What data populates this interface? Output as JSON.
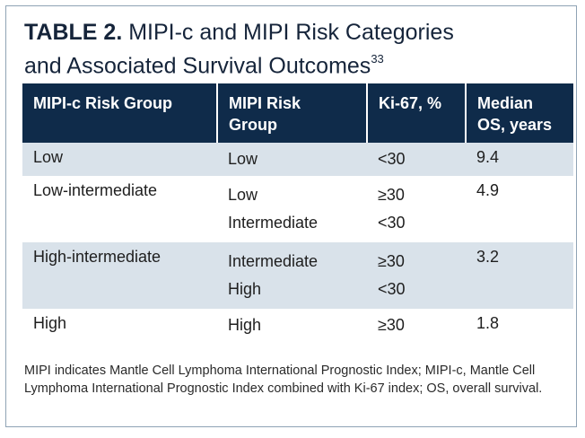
{
  "title": {
    "label": "TABLE 2.",
    "line1": "MIPI-c and MIPI Risk Categories",
    "line2": "and Associated Survival Outcomes",
    "ref": "33"
  },
  "headers": {
    "col1": "MIPI-c Risk Group",
    "col2_line1": "MIPI Risk",
    "col2_line2": "Group",
    "col3": "Ki-67, %",
    "col4_line1": "Median",
    "col4_line2": "OS, years"
  },
  "groups": [
    {
      "mipi_c": "Low",
      "os": "9.4",
      "rows": [
        {
          "mipi": "Low",
          "ki67": "<30"
        }
      ]
    },
    {
      "mipi_c": "Low-intermediate",
      "os": "4.9",
      "rows": [
        {
          "mipi": "Low",
          "ki67": "≥30"
        },
        {
          "mipi": "Intermediate",
          "ki67": "<30"
        }
      ]
    },
    {
      "mipi_c": "High-intermediate",
      "os": "3.2",
      "rows": [
        {
          "mipi": "Intermediate",
          "ki67": "≥30"
        },
        {
          "mipi": "High",
          "ki67": "<30"
        }
      ]
    },
    {
      "mipi_c": "High",
      "os": "1.8",
      "rows": [
        {
          "mipi": "High",
          "ki67": "≥30"
        }
      ]
    }
  ],
  "footnote": "MIPI indicates Mantle Cell Lymphoma International Prognostic Index; MIPI-c, Mantle Cell Lymphoma International Prognostic Index combined with Ki-67 index; OS, overall survival."
}
